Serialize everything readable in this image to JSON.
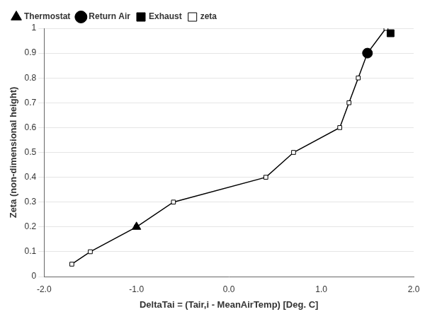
{
  "chart_data": {
    "type": "line",
    "xlabel": "DeltaTai = (Tair,i - MeanAirTemp) [Deg. C]",
    "ylabel": "Zeta (non-dimensional height)",
    "series": [
      {
        "name": "zeta",
        "color": "#000000",
        "marker": "square",
        "line_style": "solid",
        "x": [
          -1.7,
          -1.5,
          -1.0,
          -0.6,
          0.4,
          0.7,
          1.2,
          1.3,
          1.4,
          1.5,
          1.7
        ],
        "values": [
          0.05,
          0.1,
          0.2,
          0.3,
          0.4,
          0.5,
          0.6,
          0.7,
          0.8,
          0.9,
          1
        ]
      },
      {
        "name": "Thermostat",
        "color": "#000000",
        "marker": "triangle",
        "line_style": "none",
        "x": [
          -1.0
        ],
        "values": [
          0.2
        ]
      },
      {
        "name": "Return Air",
        "color": "#000000",
        "marker": "circle",
        "line_style": "none",
        "x": [
          1.5
        ],
        "values": [
          0.9
        ]
      },
      {
        "name": "Exhaust",
        "color": "#000000",
        "marker": "square",
        "line_style": "none",
        "x": [
          1.75
        ],
        "values": [
          0.98
        ]
      }
    ],
    "xlim": [
      -2.0,
      2.0
    ],
    "ylim": [
      0,
      1
    ],
    "xticks": [
      {
        "value": -2.0,
        "label": "-2.0"
      },
      {
        "value": -1.0,
        "label": "-1.0"
      },
      {
        "value": 0.0,
        "label": "0.0"
      },
      {
        "value": 1.0,
        "label": "1.0"
      },
      {
        "value": 2.0,
        "label": "2.0"
      }
    ],
    "yticks": [
      0,
      0.1,
      0.2,
      0.3,
      0.4,
      0.5,
      0.6,
      0.7,
      0.8,
      0.9,
      1
    ],
    "grid": "y",
    "legend": "upper left"
  }
}
